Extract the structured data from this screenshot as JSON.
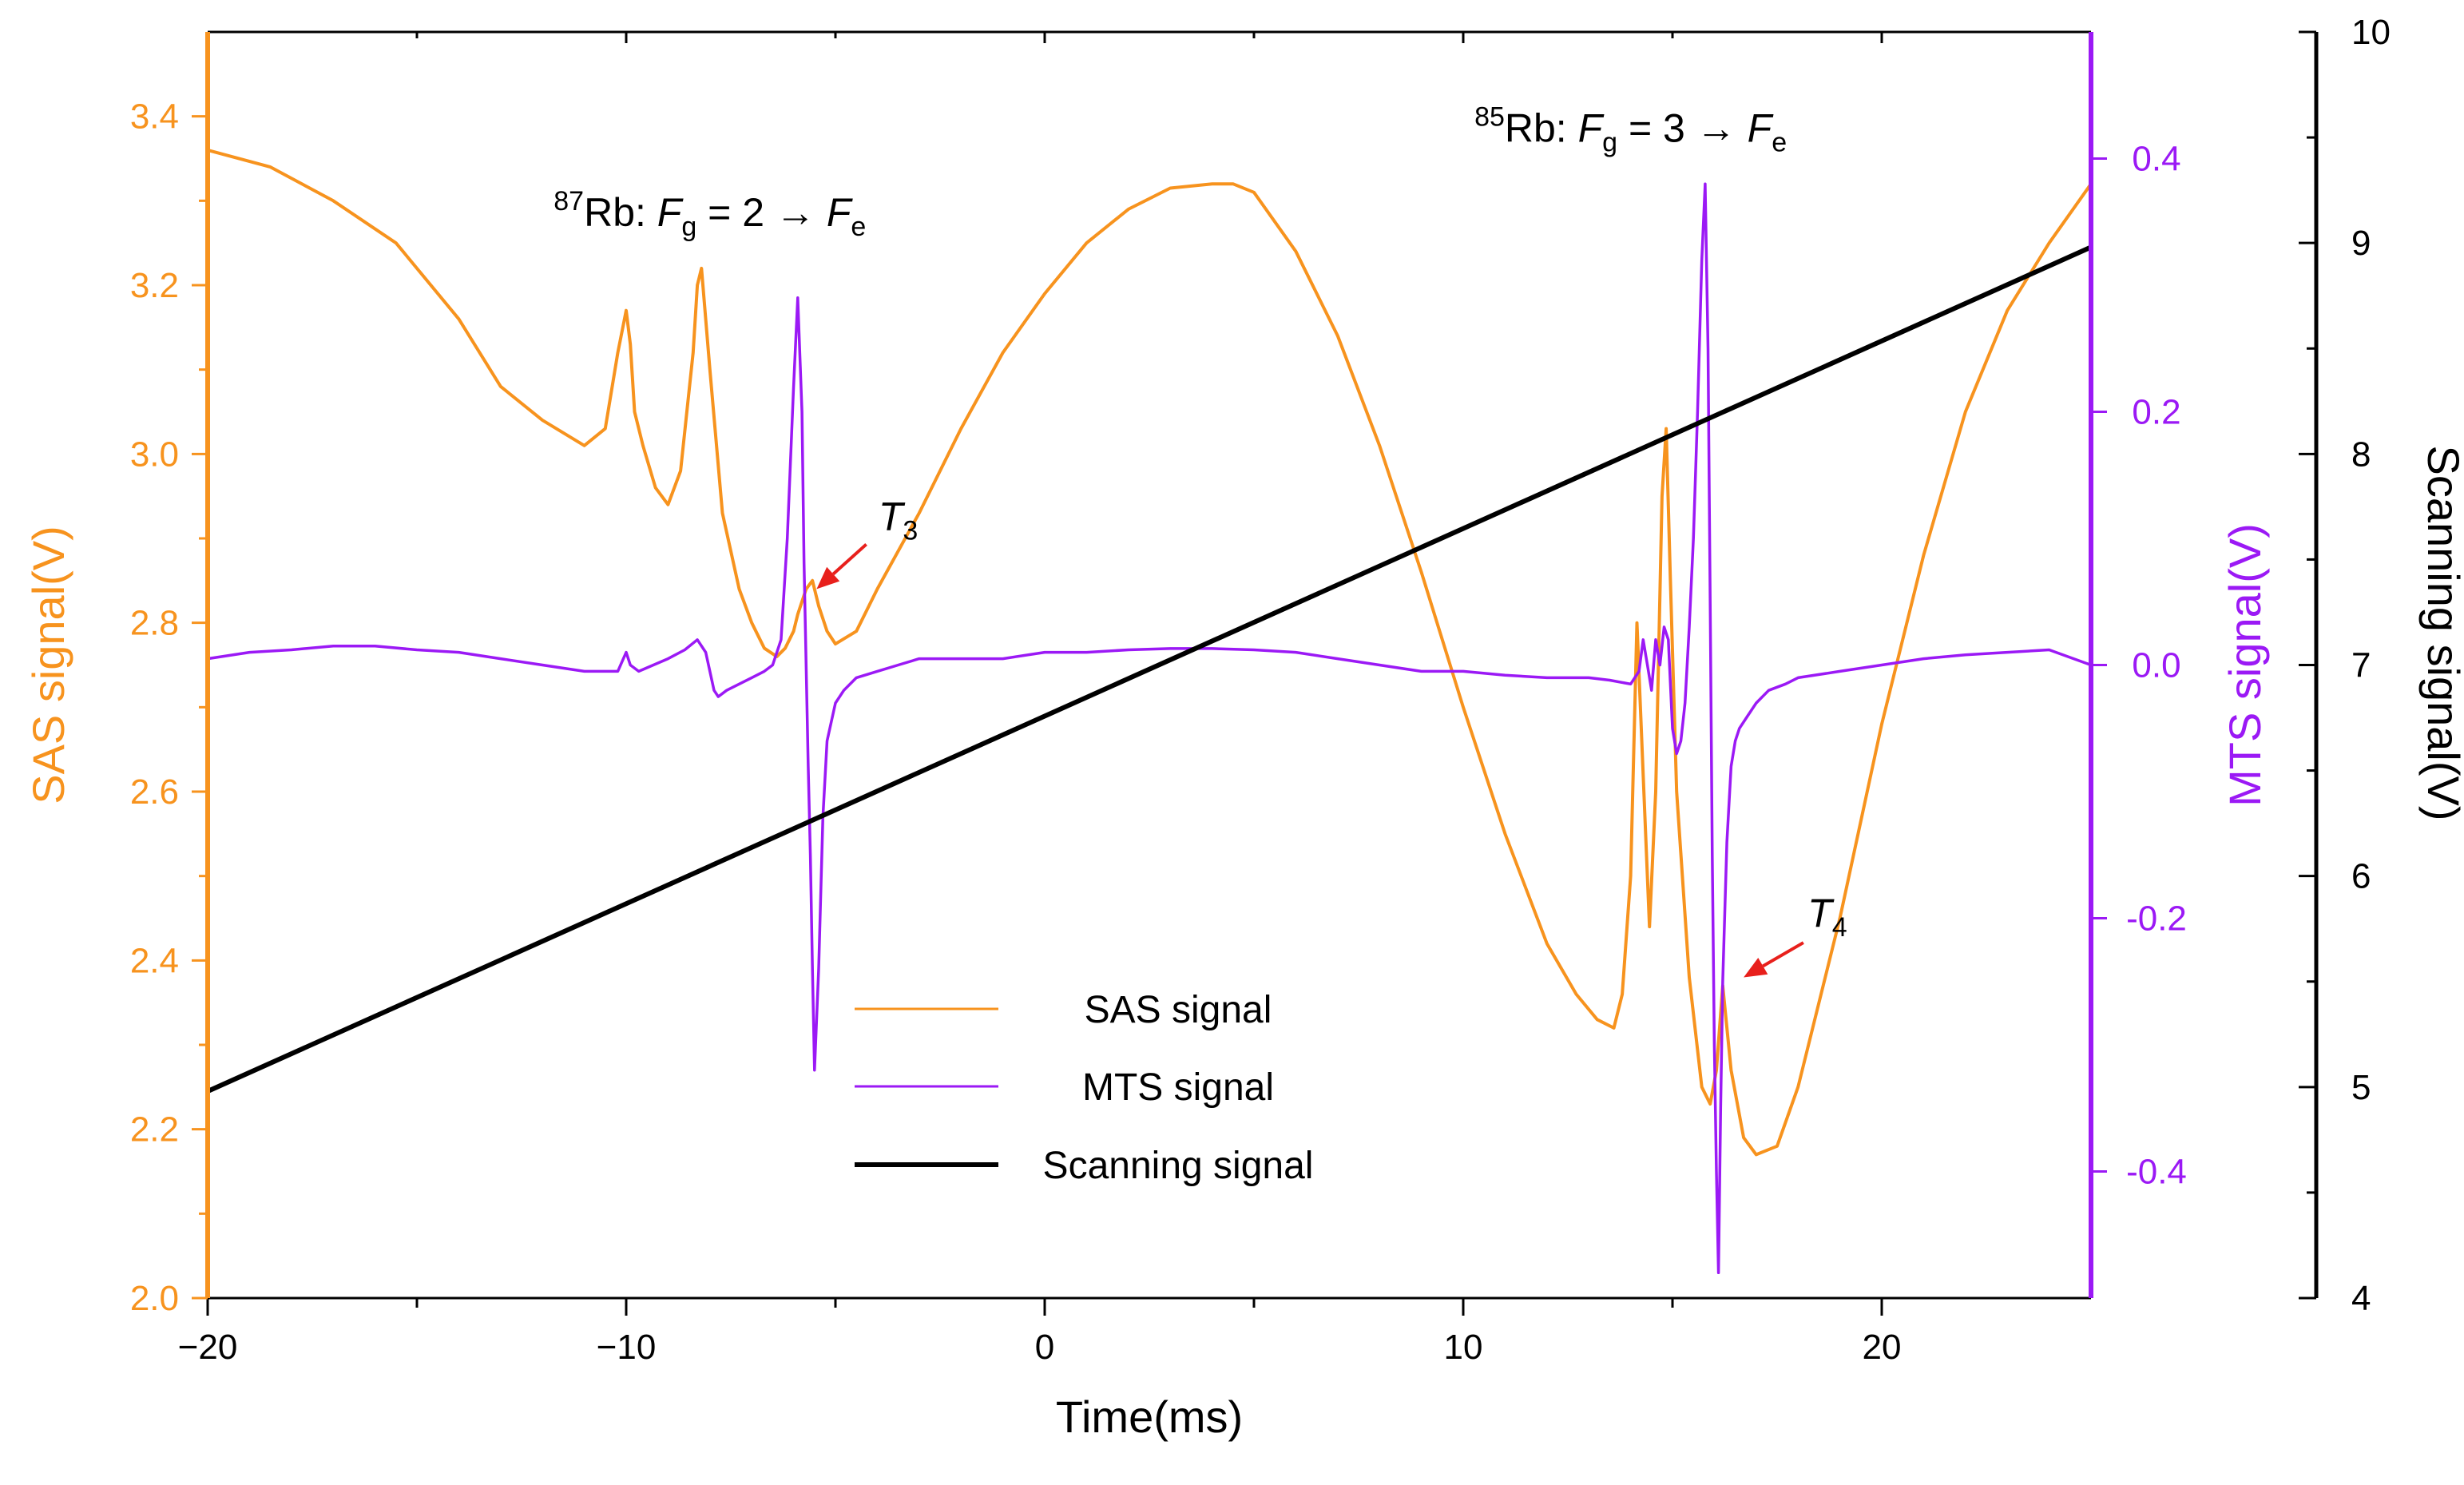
{
  "chart_data": {
    "type": "line",
    "title": "",
    "xlabel": "Time(ms)",
    "xlim": [
      -20,
      25
    ],
    "x_ticks": [
      -20,
      -10,
      0,
      10,
      20
    ],
    "x_tick_labels": [
      "−20",
      "−10",
      "0",
      "10",
      "20"
    ],
    "axes": {
      "sas": {
        "label": "SAS signal(V)",
        "color": "#F7931E",
        "lim": [
          2.0,
          3.5
        ],
        "ticks": [
          2.0,
          2.2,
          2.4,
          2.6,
          2.8,
          3.0,
          3.2,
          3.4
        ],
        "tick_labels": [
          "2.0",
          "2.2",
          "2.4",
          "2.6",
          "2.8",
          "3.0",
          "3.2",
          "3.4"
        ]
      },
      "mts": {
        "label": "MTS signal(V)",
        "color": "#9B19F5",
        "lim": [
          -0.5,
          0.5
        ],
        "ticks": [
          -0.4,
          -0.2,
          0.0,
          0.2,
          0.4
        ],
        "tick_labels": [
          "-0.4",
          "-0.2",
          "0.0",
          "0.2",
          "0.4"
        ]
      },
      "scan": {
        "label": "Scanning signal(V)",
        "color": "#000000",
        "lim": [
          4,
          10
        ],
        "ticks": [
          4,
          5,
          6,
          7,
          8,
          9,
          10
        ],
        "tick_labels": [
          "4",
          "5",
          "6",
          "7",
          "8",
          "9",
          "10"
        ]
      }
    },
    "series": [
      {
        "name": "SAS signal",
        "axis": "sas",
        "color": "#F7931E",
        "x": [
          -20,
          -18.5,
          -17,
          -15.5,
          -14,
          -13,
          -12,
          -11,
          -10.5,
          -10.2,
          -10.0,
          -9.9,
          -9.8,
          -9.6,
          -9.3,
          -9.0,
          -8.7,
          -8.4,
          -8.3,
          -8.2,
          -8.0,
          -7.7,
          -7.3,
          -7.0,
          -6.7,
          -6.4,
          -6.2,
          -6.0,
          -5.9,
          -5.7,
          -5.55,
          -5.4,
          -5.2,
          -5.0,
          -4.5,
          -4.0,
          -3.0,
          -2.0,
          -1.0,
          0.0,
          1.0,
          2.0,
          3.0,
          4.0,
          4.5,
          5.0,
          6.0,
          7.0,
          8.0,
          9.0,
          10.0,
          11.0,
          12.0,
          12.7,
          13.2,
          13.6,
          13.8,
          14.0,
          14.15,
          14.3,
          14.45,
          14.6,
          14.75,
          14.85,
          14.95,
          15.1,
          15.4,
          15.7,
          15.9,
          16.05,
          16.2,
          16.4,
          16.7,
          17.0,
          17.5,
          18.0,
          19.0,
          20.0,
          21.0,
          22.0,
          23.0,
          24.0,
          25.0
        ],
        "values": [
          3.36,
          3.34,
          3.3,
          3.25,
          3.16,
          3.08,
          3.04,
          3.01,
          3.03,
          3.12,
          3.17,
          3.13,
          3.05,
          3.01,
          2.96,
          2.94,
          2.98,
          3.12,
          3.2,
          3.22,
          3.1,
          2.93,
          2.84,
          2.8,
          2.77,
          2.76,
          2.77,
          2.79,
          2.81,
          2.84,
          2.85,
          2.82,
          2.79,
          2.775,
          2.79,
          2.84,
          2.93,
          3.03,
          3.12,
          3.19,
          3.25,
          3.29,
          3.315,
          3.32,
          3.32,
          3.31,
          3.24,
          3.14,
          3.01,
          2.86,
          2.7,
          2.55,
          2.42,
          2.36,
          2.33,
          2.32,
          2.36,
          2.5,
          2.8,
          2.62,
          2.44,
          2.6,
          2.95,
          3.03,
          2.85,
          2.6,
          2.38,
          2.25,
          2.23,
          2.27,
          2.37,
          2.27,
          2.19,
          2.17,
          2.18,
          2.25,
          2.45,
          2.68,
          2.88,
          3.05,
          3.17,
          3.25,
          3.32
        ]
      },
      {
        "name": "MTS signal",
        "axis": "mts",
        "color": "#9B19F5",
        "x": [
          -20,
          -19,
          -18,
          -17,
          -16,
          -15,
          -14,
          -13,
          -12,
          -11,
          -10.2,
          -10.0,
          -9.9,
          -9.7,
          -9.0,
          -8.6,
          -8.3,
          -8.1,
          -7.9,
          -7.8,
          -7.6,
          -7.3,
          -7.0,
          -6.7,
          -6.5,
          -6.3,
          -6.15,
          -6.0,
          -5.9,
          -5.8,
          -5.75,
          -5.7,
          -5.65,
          -5.6,
          -5.55,
          -5.5,
          -5.4,
          -5.3,
          -5.2,
          -5.0,
          -4.8,
          -4.5,
          -4.0,
          -3.5,
          -3.0,
          -2.0,
          -1.0,
          0.0,
          1.0,
          2.0,
          3.0,
          4.0,
          5.0,
          6.0,
          7.0,
          8.0,
          9.0,
          10.0,
          11.0,
          12.0,
          13.0,
          13.5,
          14.0,
          14.2,
          14.3,
          14.4,
          14.5,
          14.6,
          14.7,
          14.8,
          14.9,
          15.0,
          15.1,
          15.2,
          15.3,
          15.4,
          15.5,
          15.6,
          15.7,
          15.78,
          15.85,
          15.9,
          15.95,
          16.0,
          16.05,
          16.1,
          16.15,
          16.2,
          16.3,
          16.4,
          16.5,
          16.6,
          16.8,
          17.0,
          17.3,
          17.7,
          18.0,
          19.0,
          20.0,
          21.0,
          22.0,
          23.0,
          24.0,
          25.0
        ],
        "values": [
          0.005,
          0.01,
          0.012,
          0.015,
          0.015,
          0.012,
          0.01,
          0.005,
          0.0,
          -0.005,
          -0.005,
          0.01,
          0.0,
          -0.005,
          0.005,
          0.012,
          0.02,
          0.01,
          -0.02,
          -0.025,
          -0.02,
          -0.015,
          -0.01,
          -0.005,
          0.0,
          0.02,
          0.1,
          0.22,
          0.29,
          0.2,
          0.08,
          0.0,
          -0.08,
          -0.15,
          -0.24,
          -0.32,
          -0.24,
          -0.12,
          -0.06,
          -0.03,
          -0.02,
          -0.01,
          -0.005,
          0.0,
          0.005,
          0.005,
          0.005,
          0.01,
          0.01,
          0.012,
          0.013,
          0.013,
          0.012,
          0.01,
          0.005,
          0.0,
          -0.005,
          -0.005,
          -0.008,
          -0.01,
          -0.01,
          -0.012,
          -0.015,
          -0.005,
          0.02,
          0.0,
          -0.02,
          0.02,
          0.0,
          0.03,
          0.02,
          -0.05,
          -0.07,
          -0.06,
          -0.03,
          0.03,
          0.1,
          0.2,
          0.32,
          0.38,
          0.25,
          0.05,
          -0.15,
          -0.3,
          -0.4,
          -0.48,
          -0.35,
          -0.25,
          -0.14,
          -0.08,
          -0.06,
          -0.05,
          -0.04,
          -0.03,
          -0.02,
          -0.015,
          -0.01,
          -0.005,
          0.0,
          0.005,
          0.008,
          0.01,
          0.012,
          0.0
        ]
      },
      {
        "name": "Scanning signal",
        "axis": "scan",
        "color": "#000000",
        "x": [
          -20,
          25
        ],
        "values": [
          4.98,
          8.98
        ]
      }
    ],
    "legend": {
      "placement": "lower-center",
      "entries": [
        "SAS signal",
        "MTS signal",
        "Scanning signal"
      ]
    },
    "annotations": {
      "rb87": {
        "isotope": "87",
        "base": "Rb: ",
        "fg": "F",
        "fg_sub": "g",
        "arrow_text": " = 2 → ",
        "fe": "F",
        "fe_sub": "e",
        "x": -8,
        "sas_y": 3.27
      },
      "rb85": {
        "isotope": "85",
        "base": "Rb: ",
        "fg": "F",
        "fg_sub": "g",
        "arrow_text": " = 3 → ",
        "fe": "F",
        "fe_sub": "e",
        "x": 14,
        "sas_y": 3.37
      },
      "t3": {
        "label": "T",
        "sub": "3",
        "x": -3.5,
        "sas_y": 2.91,
        "arrow_to_x": -5.45,
        "arrow_to_sas_y": 2.84
      },
      "t4": {
        "label": "T",
        "sub": "4",
        "x": 18.7,
        "sas_y": 2.44,
        "arrow_to_x": 16.7,
        "arrow_to_sas_y": 2.38
      }
    }
  }
}
